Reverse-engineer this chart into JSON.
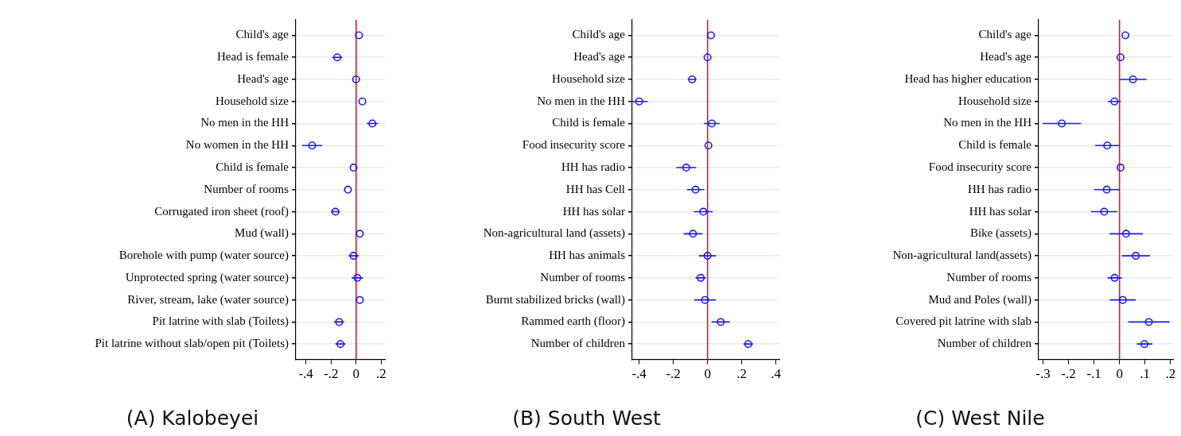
{
  "chart_data": [
    {
      "type": "scatter",
      "title": "(A) Kalobeyei",
      "orientation": "horizontal",
      "marker": "circle",
      "color": "#1a1aff",
      "grid": "y",
      "categories": [
        "Child's age",
        "Head is female",
        "Head's age",
        "Household size",
        "No men in the HH",
        "No women in the HH",
        "Child is female",
        "Number of rooms",
        "Corrugated iron sheet (roof)",
        "Mud (wall)",
        "Borehole with pump (water source)",
        "Unprotected spring (water source)",
        "River, stream, lake (water source)",
        "Pit latrine with slab (Toilets)",
        "Pit latrine without slab/open pit (Toilets)"
      ],
      "values": [
        0.023,
        -0.15,
        0.0,
        0.05,
        0.13,
        -0.35,
        -0.02,
        -0.065,
        -0.165,
        0.03,
        -0.02,
        0.01,
        0.03,
        -0.135,
        -0.125
      ],
      "errors": [
        null,
        0.04,
        null,
        null,
        0.045,
        0.08,
        null,
        null,
        0.035,
        null,
        0.04,
        0.045,
        null,
        0.04,
        0.04
      ],
      "xlim": [
        -0.48,
        0.23
      ],
      "xticks": [
        {
          "value": -0.4,
          "label": "-.4"
        },
        {
          "value": -0.2,
          "label": "-.2"
        },
        {
          "value": 0,
          "label": "0"
        },
        {
          "value": 0.2,
          "label": ".2"
        }
      ],
      "ref_lines": [
        {
          "axis": "x",
          "value": 0,
          "color": "#e8141b"
        }
      ]
    },
    {
      "type": "scatter",
      "title": "(B) South West",
      "orientation": "horizontal",
      "marker": "circle",
      "color": "#1a1aff",
      "grid": "y",
      "categories": [
        "Child's age",
        "Head's age",
        "Household size",
        "No men in the HH",
        "Child is female",
        "Food insecurity score",
        "HH has radio",
        "HH has Cell",
        "HH has solar",
        "Non-agricultural land (assets)",
        "HH has animals",
        "Number of rooms",
        "Burnt stabilized bricks (wall)",
        "Rammed earth (floor)",
        "Number of children"
      ],
      "values": [
        0.02,
        0.0,
        -0.09,
        -0.4,
        0.025,
        0.005,
        -0.125,
        -0.07,
        -0.025,
        -0.085,
        0.0,
        -0.04,
        -0.015,
        0.077,
        0.238
      ],
      "errors": [
        null,
        null,
        0.025,
        0.05,
        0.046,
        null,
        0.058,
        0.05,
        0.055,
        0.055,
        0.05,
        0.03,
        0.063,
        0.053,
        0.028
      ],
      "xlim": [
        -0.44,
        0.42
      ],
      "xticks": [
        {
          "value": -0.4,
          "label": "-.4"
        },
        {
          "value": -0.2,
          "label": "-.2"
        },
        {
          "value": 0,
          "label": "0"
        },
        {
          "value": 0.2,
          "label": ".2"
        },
        {
          "value": 0.4,
          "label": ".4"
        }
      ],
      "ref_lines": [
        {
          "axis": "x",
          "value": 0,
          "color": "#e8141b"
        }
      ]
    },
    {
      "type": "scatter",
      "title": "(C) West Nile",
      "orientation": "horizontal",
      "marker": "circle",
      "color": "#1a1aff",
      "grid": "y",
      "categories": [
        "Child's age",
        "Head's age",
        "Head has higher education",
        "Household size",
        "No men in the HH",
        "Child is female",
        "Food insecurity score",
        "HH has radio",
        "HH has solar",
        "Bike (assets)",
        "Non-agricultural land(assets)",
        "Number of rooms",
        "Mud and Poles (wall)",
        "Covered pit latrine with slab",
        "Number of children"
      ],
      "values": [
        0.023,
        0.004,
        0.053,
        -0.02,
        -0.226,
        -0.048,
        0.004,
        -0.05,
        -0.06,
        0.026,
        0.064,
        -0.019,
        0.013,
        0.115,
        0.098
      ],
      "errors": [
        null,
        null,
        0.053,
        0.026,
        0.075,
        0.047,
        null,
        0.05,
        0.051,
        0.065,
        0.055,
        0.028,
        0.051,
        0.081,
        0.03
      ],
      "xlim": [
        -0.317,
        0.21
      ],
      "xticks": [
        {
          "value": -0.3,
          "label": "-.3"
        },
        {
          "value": -0.2,
          "label": "-.2"
        },
        {
          "value": -0.1,
          "label": "-.1"
        },
        {
          "value": 0,
          "label": "0"
        },
        {
          "value": 0.1,
          "label": ".1"
        },
        {
          "value": 0.2,
          "label": ".2"
        }
      ],
      "ref_lines": [
        {
          "axis": "x",
          "value": 0,
          "color": "#e8141b"
        }
      ]
    }
  ]
}
